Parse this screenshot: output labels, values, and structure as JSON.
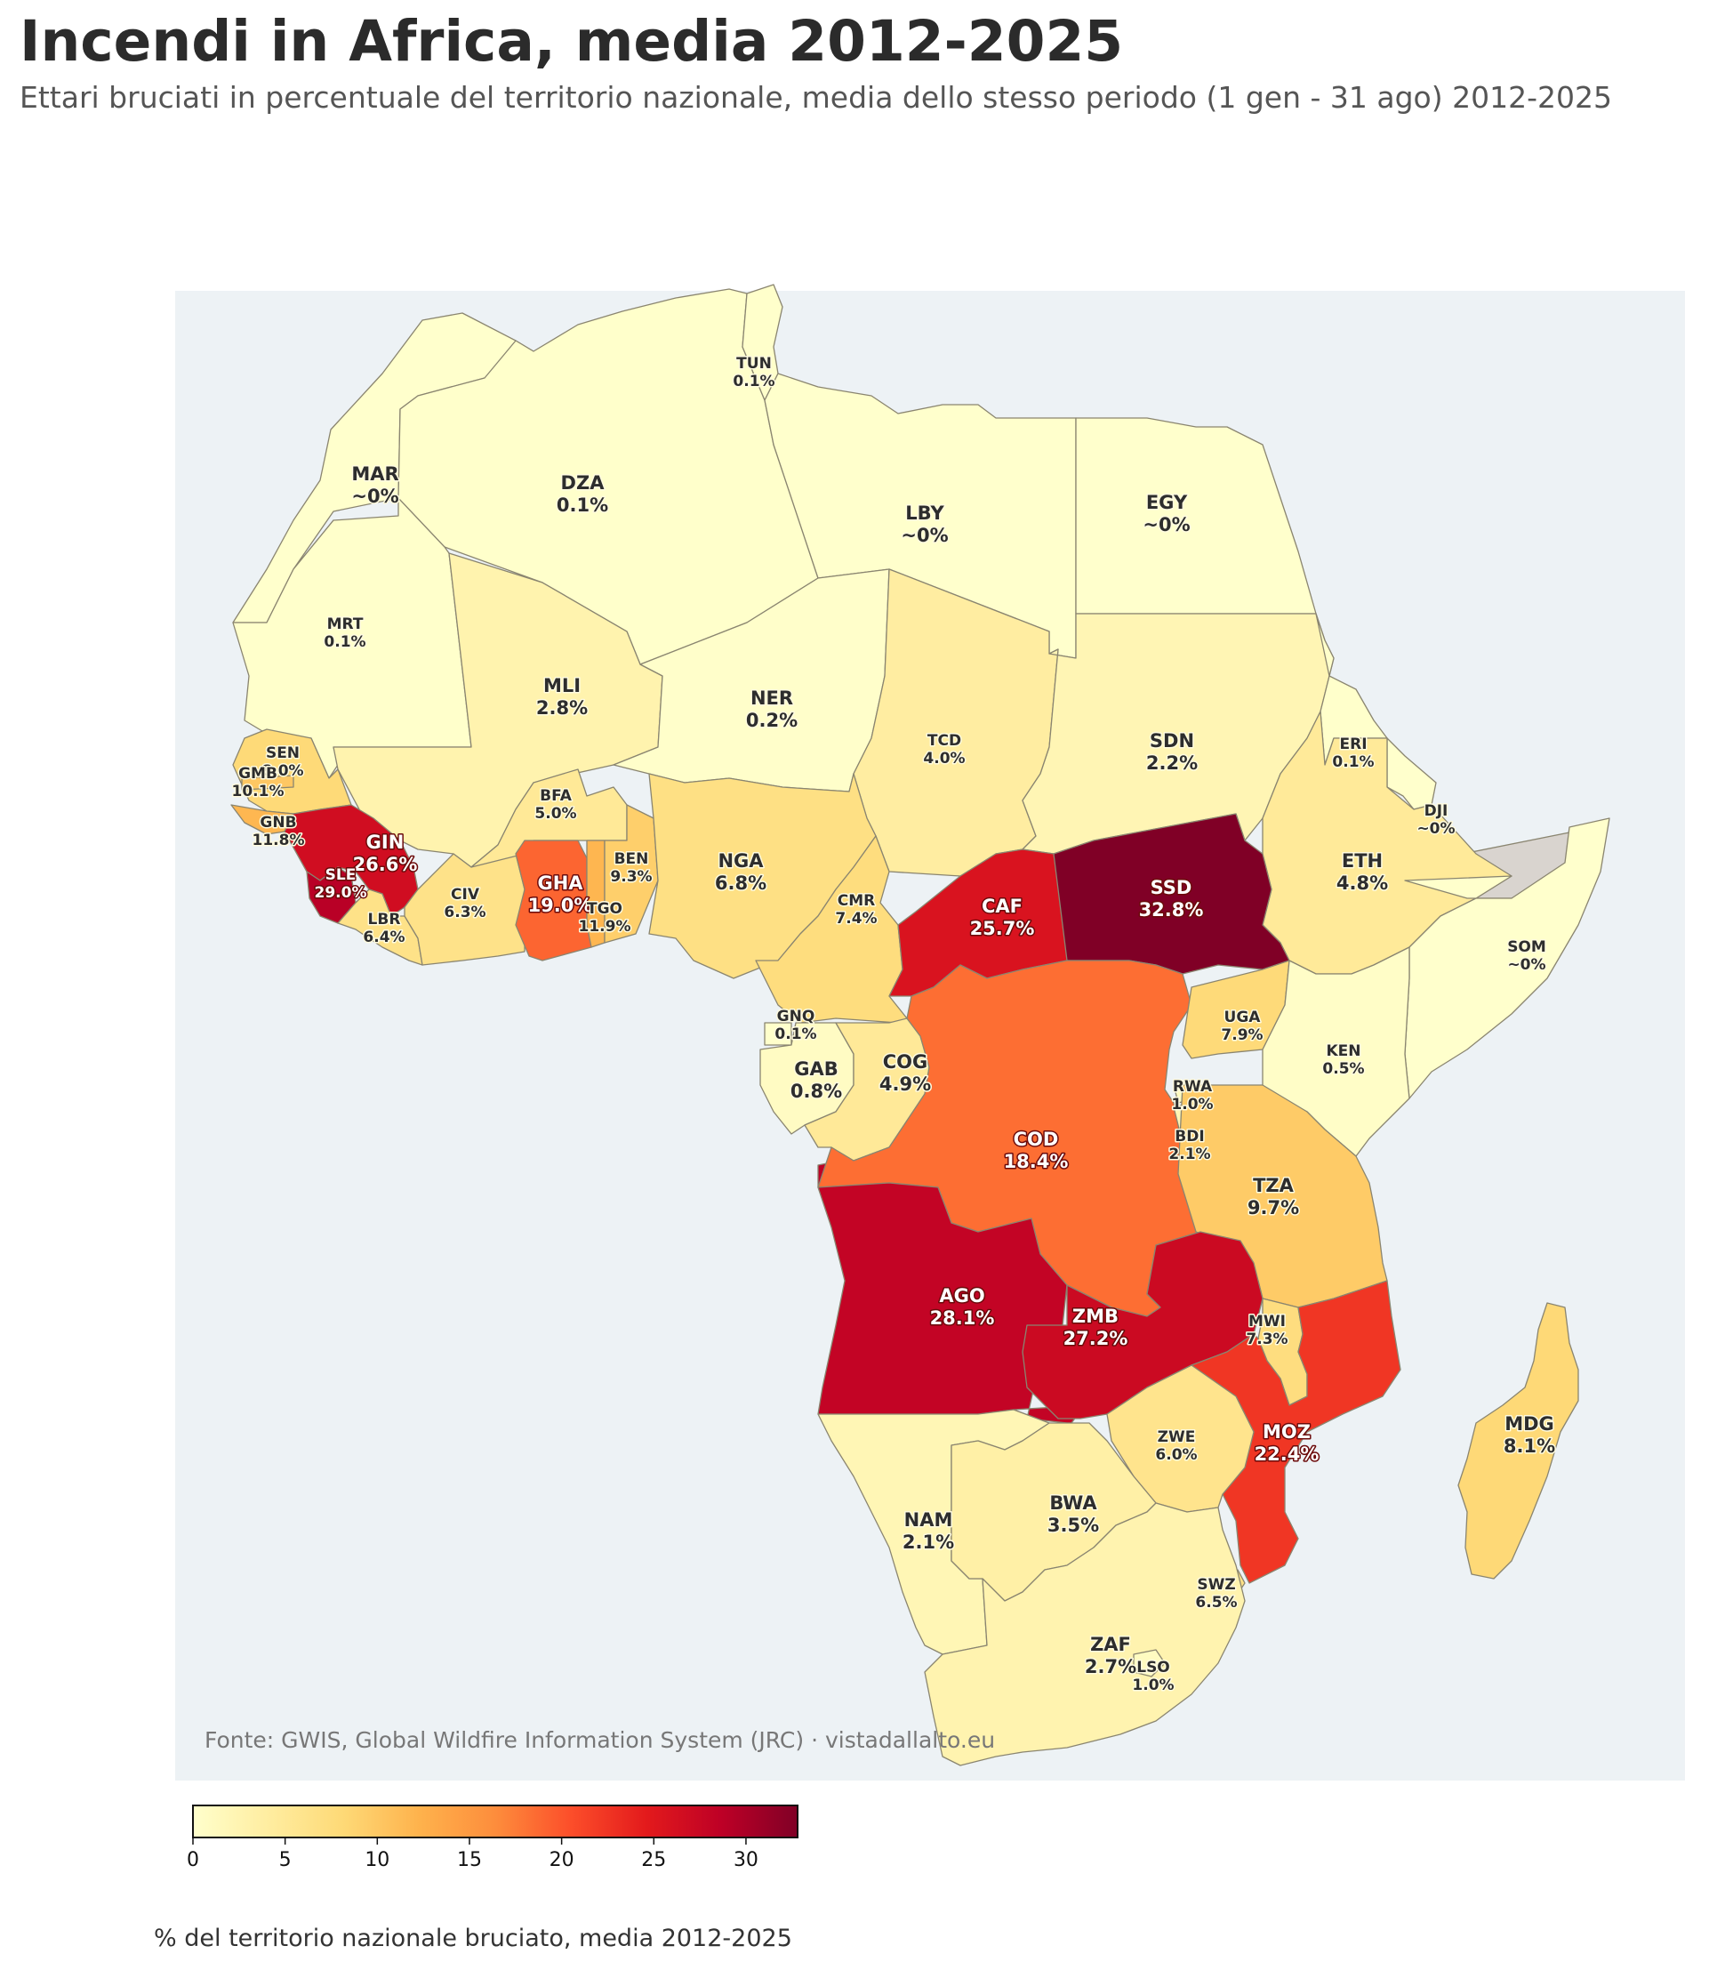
{
  "title": "Incendi in Africa, media 2012-2025",
  "subtitle": "Ettari bruciati in percentuale del territorio nazionale, media dello stesso periodo (1 gen - 31 ago) 2012-2025",
  "source": "Fonte: GWIS, Global Wildfire Information System (JRC) · vistadallalto.eu",
  "colorbar": {
    "label": "% del territorio nazionale bruciato, media 2012-2025",
    "min": 0,
    "max": 32.8,
    "ticks": [
      "0",
      "5",
      "10",
      "15",
      "20",
      "25",
      "30"
    ],
    "colors": [
      "#ffffcc",
      "#ffeda0",
      "#fed976",
      "#feb24c",
      "#fd8d3c",
      "#fc4e2a",
      "#e31a1c",
      "#bd0026",
      "#800026"
    ]
  },
  "colors": {
    "ocean": "#edf2f5",
    "no_data": "#d9d4cf",
    "border": "#8a8570"
  },
  "countries": [
    {
      "code": "MAR",
      "value_label": "~0%",
      "value": 0
    },
    {
      "code": "DZA",
      "value_label": "0.1%",
      "value": 0.1
    },
    {
      "code": "TUN",
      "value_label": "0.1%",
      "value": 0.1
    },
    {
      "code": "LBY",
      "value_label": "~0%",
      "value": 0
    },
    {
      "code": "EGY",
      "value_label": "~0%",
      "value": 0
    },
    {
      "code": "MRT",
      "value_label": "0.1%",
      "value": 0.1
    },
    {
      "code": "MLI",
      "value_label": "2.8%",
      "value": 2.8
    },
    {
      "code": "NER",
      "value_label": "0.2%",
      "value": 0.2
    },
    {
      "code": "TCD",
      "value_label": "4.0%",
      "value": 4.0
    },
    {
      "code": "SDN",
      "value_label": "2.2%",
      "value": 2.2
    },
    {
      "code": "ERI",
      "value_label": "0.1%",
      "value": 0.1
    },
    {
      "code": "DJI",
      "value_label": "~0%",
      "value": 0
    },
    {
      "code": "ETH",
      "value_label": "4.8%",
      "value": 4.8
    },
    {
      "code": "SOM",
      "value_label": "~0%",
      "value": 0
    },
    {
      "code": "SEN",
      "value_label": "8.0%",
      "value": 8.0
    },
    {
      "code": "GMB",
      "value_label": "10.1%",
      "value": 10.1
    },
    {
      "code": "GNB",
      "value_label": "11.8%",
      "value": 11.8
    },
    {
      "code": "GIN",
      "value_label": "26.6%",
      "value": 26.6
    },
    {
      "code": "SLE",
      "value_label": "29.0%",
      "value": 29.0
    },
    {
      "code": "LBR",
      "value_label": "6.4%",
      "value": 6.4
    },
    {
      "code": "CIV",
      "value_label": "6.3%",
      "value": 6.3
    },
    {
      "code": "BFA",
      "value_label": "5.0%",
      "value": 5.0
    },
    {
      "code": "GHA",
      "value_label": "19.0%",
      "value": 19.0
    },
    {
      "code": "TGO",
      "value_label": "11.9%",
      "value": 11.9
    },
    {
      "code": "BEN",
      "value_label": "9.3%",
      "value": 9.3
    },
    {
      "code": "NGA",
      "value_label": "6.8%",
      "value": 6.8
    },
    {
      "code": "CMR",
      "value_label": "7.4%",
      "value": 7.4
    },
    {
      "code": "CAF",
      "value_label": "25.7%",
      "value": 25.7
    },
    {
      "code": "SSD",
      "value_label": "32.8%",
      "value": 32.8
    },
    {
      "code": "GNQ",
      "value_label": "0.1%",
      "value": 0.1
    },
    {
      "code": "GAB",
      "value_label": "0.8%",
      "value": 0.8
    },
    {
      "code": "COG",
      "value_label": "4.9%",
      "value": 4.9
    },
    {
      "code": "COD",
      "value_label": "18.4%",
      "value": 18.4
    },
    {
      "code": "UGA",
      "value_label": "7.9%",
      "value": 7.9
    },
    {
      "code": "KEN",
      "value_label": "0.5%",
      "value": 0.5
    },
    {
      "code": "RWA",
      "value_label": "1.0%",
      "value": 1.0
    },
    {
      "code": "BDI",
      "value_label": "2.1%",
      "value": 2.1
    },
    {
      "code": "TZA",
      "value_label": "9.7%",
      "value": 9.7
    },
    {
      "code": "AGO",
      "value_label": "28.1%",
      "value": 28.1
    },
    {
      "code": "ZMB",
      "value_label": "27.2%",
      "value": 27.2
    },
    {
      "code": "MWI",
      "value_label": "7.3%",
      "value": 7.3
    },
    {
      "code": "MOZ",
      "value_label": "22.4%",
      "value": 22.4
    },
    {
      "code": "ZWE",
      "value_label": "6.0%",
      "value": 6.0
    },
    {
      "code": "MDG",
      "value_label": "8.1%",
      "value": 8.1
    },
    {
      "code": "NAM",
      "value_label": "2.1%",
      "value": 2.1
    },
    {
      "code": "BWA",
      "value_label": "3.5%",
      "value": 3.5
    },
    {
      "code": "SWZ",
      "value_label": "6.5%",
      "value": 6.5
    },
    {
      "code": "ZAF",
      "value_label": "2.7%",
      "value": 2.7
    },
    {
      "code": "LSO",
      "value_label": "1.0%",
      "value": 1.0
    }
  ]
}
